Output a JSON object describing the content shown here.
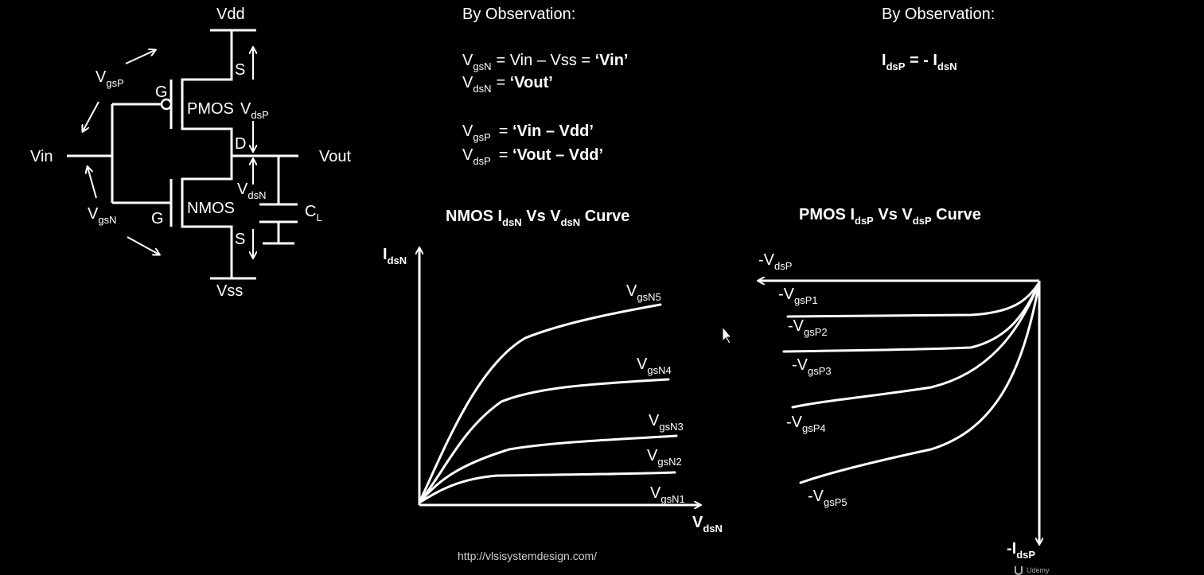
{
  "circuit": {
    "vdd": "Vdd",
    "vss": "Vss",
    "vin": "Vin",
    "vout": "Vout",
    "pmos": "PMOS",
    "nmos": "NMOS",
    "gate_p": "G",
    "gate_n": "G",
    "source_p": "S",
    "drain": "D",
    "source_n": "S",
    "vgsp": {
      "main": "V",
      "sub": "gsP"
    },
    "vgsn": {
      "main": "V",
      "sub": "gsN"
    },
    "vdsp": {
      "main": "V",
      "sub": "dsP"
    },
    "vdsn": {
      "main": "V",
      "sub": "dsN"
    },
    "cl": {
      "main": "C",
      "sub": "L"
    }
  },
  "observations_left": {
    "heading": "By Observation:",
    "lines": [
      {
        "v": "V",
        "sub": "gsN",
        "eq": "= Vin – Vss = ",
        "bold": "‘Vin’"
      },
      {
        "v": "V",
        "sub": "dsN",
        "eq": "= ",
        "bold": "‘Vout’"
      },
      {
        "v": "V",
        "sub": "gsP",
        "eq": "= ",
        "bold": "‘Vin – Vdd’"
      },
      {
        "v": "V",
        "sub": "dsP",
        "eq": "= ",
        "bold": "‘Vout – Vdd’"
      }
    ]
  },
  "observations_right": {
    "heading": "By Observation:",
    "relation": {
      "a": "I",
      "a_sub": "dsP",
      "mid": " = - I",
      "b_sub": "dsN"
    }
  },
  "nmos_chart": {
    "title": {
      "p1": "NMOS I",
      "s1": "dsN",
      "p2": " Vs V",
      "s2": "dsN",
      "p3": " Curve"
    },
    "ylabel": {
      "main": "I",
      "sub": "dsN"
    },
    "xlabel": {
      "main": "V",
      "sub": "dsN"
    },
    "curves": [
      {
        "name": "gsN5"
      },
      {
        "name": "gsN4"
      },
      {
        "name": "gsN3"
      },
      {
        "name": "gsN2"
      },
      {
        "name": "gsN1"
      }
    ]
  },
  "pmos_chart": {
    "title": {
      "p1": "PMOS I",
      "s1": "dsP",
      "p2": " Vs V",
      "s2": "dsP",
      "p3": " Curve"
    },
    "xlabel": {
      "main": "-V",
      "sub": "dsP"
    },
    "ylabel": {
      "main": "-I",
      "sub": "dsP"
    },
    "curves": [
      {
        "name": "gsP1"
      },
      {
        "name": "gsP2"
      },
      {
        "name": "gsP3"
      },
      {
        "name": "gsP4"
      },
      {
        "name": "gsP5"
      }
    ]
  },
  "footer": {
    "url": "http://vlsisystemdesign.com/",
    "brand": "Udemy"
  }
}
